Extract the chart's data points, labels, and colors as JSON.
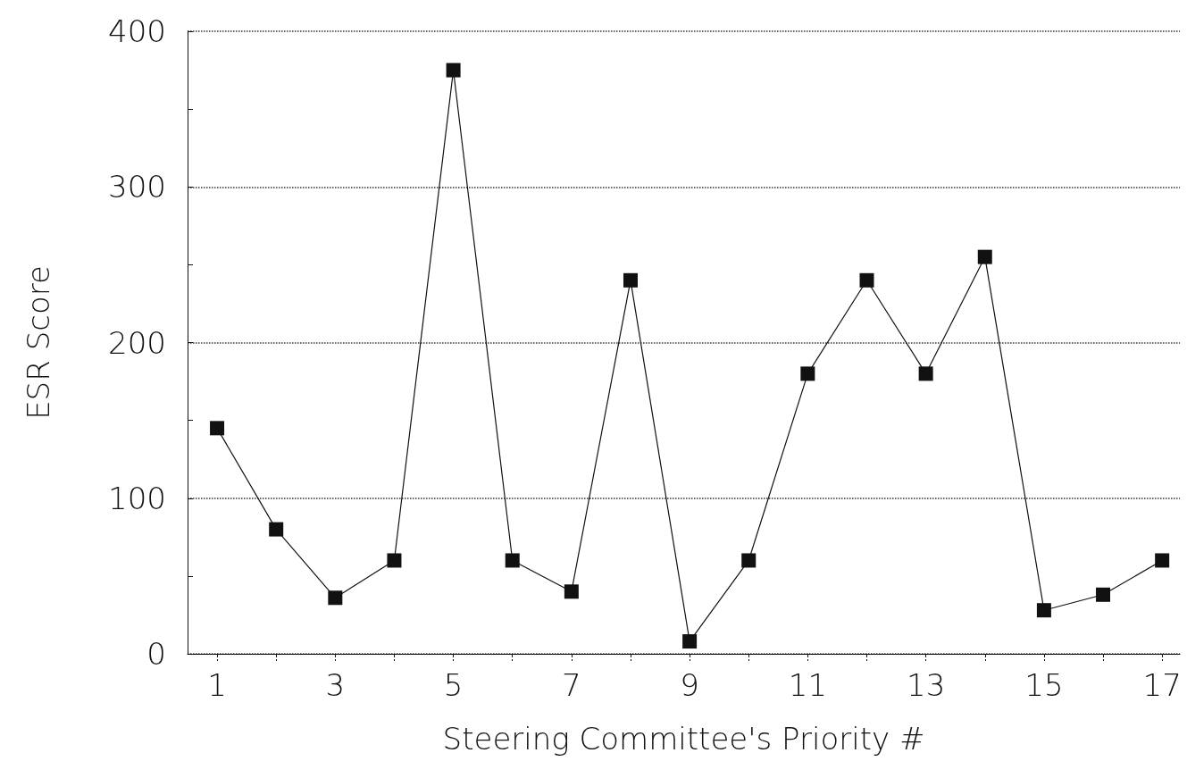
{
  "chart_data": {
    "type": "line",
    "xlabel": "Steering Committee's Priority #",
    "ylabel": "ESR Score",
    "x": [
      1,
      2,
      3,
      4,
      5,
      6,
      7,
      8,
      9,
      10,
      11,
      12,
      13,
      14,
      15,
      16,
      17
    ],
    "series": [
      {
        "color": "#111111",
        "values": [
          145,
          80,
          36,
          60,
          375,
          60,
          40,
          240,
          8,
          60,
          180,
          240,
          180,
          255,
          28,
          38,
          60
        ]
      }
    ],
    "xlim": [
      0.5,
      17.3
    ],
    "xticks": [
      1,
      {
        "value": 2,
        "label": null
      },
      3,
      {
        "value": 4,
        "label": null
      },
      5,
      {
        "value": 6,
        "label": null
      },
      7,
      {
        "value": 8,
        "label": null
      },
      9,
      {
        "value": 10,
        "label": null
      },
      11,
      {
        "value": 12,
        "label": null
      },
      13,
      {
        "value": 14,
        "label": null
      },
      15,
      {
        "value": 16,
        "label": null
      },
      17
    ],
    "ylim": [
      0,
      400
    ],
    "yticks": [
      0,
      {
        "value": 50,
        "label": null
      },
      100,
      {
        "value": 150,
        "label": null
      },
      200,
      {
        "value": 250,
        "label": null
      },
      300,
      {
        "value": 350,
        "label": null
      },
      400
    ],
    "grid": "y",
    "marker": "square",
    "line_style": "solid"
  }
}
